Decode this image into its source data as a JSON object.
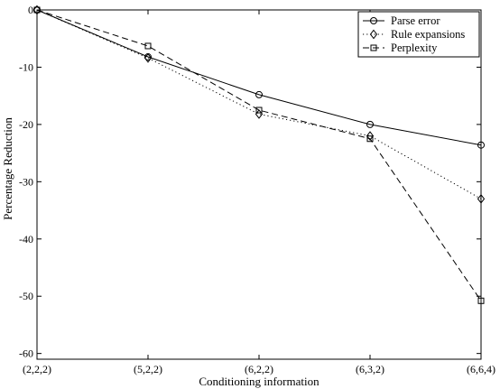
{
  "chart_data": {
    "type": "line",
    "categories": [
      "(2,2,2)",
      "(5,2,2)",
      "(6,2,2)",
      "(6,3,2)",
      "(6,6,4)"
    ],
    "series": [
      {
        "name": "Parse error",
        "values": [
          0,
          -8.2,
          -14.8,
          -20.0,
          -23.6
        ],
        "marker": "circle",
        "dash": "solid",
        "color": "#000000"
      },
      {
        "name": "Rule expansions",
        "values": [
          0,
          -8.4,
          -18.2,
          -22.0,
          -33.0
        ],
        "marker": "diamond",
        "dash": "dotted",
        "color": "#000000"
      },
      {
        "name": "Perplexity",
        "values": [
          0,
          -6.3,
          -17.5,
          -22.5,
          -50.8
        ],
        "marker": "square",
        "dash": "dashed",
        "color": "#000000"
      }
    ],
    "title": "",
    "xlabel": "Conditioning information",
    "ylabel": "Percentage Reduction",
    "ylim": [
      -61,
      0
    ],
    "yticks": [
      0,
      -10,
      -20,
      -30,
      -40,
      -50,
      -60
    ],
    "grid": false,
    "legend_position": "top-right"
  }
}
